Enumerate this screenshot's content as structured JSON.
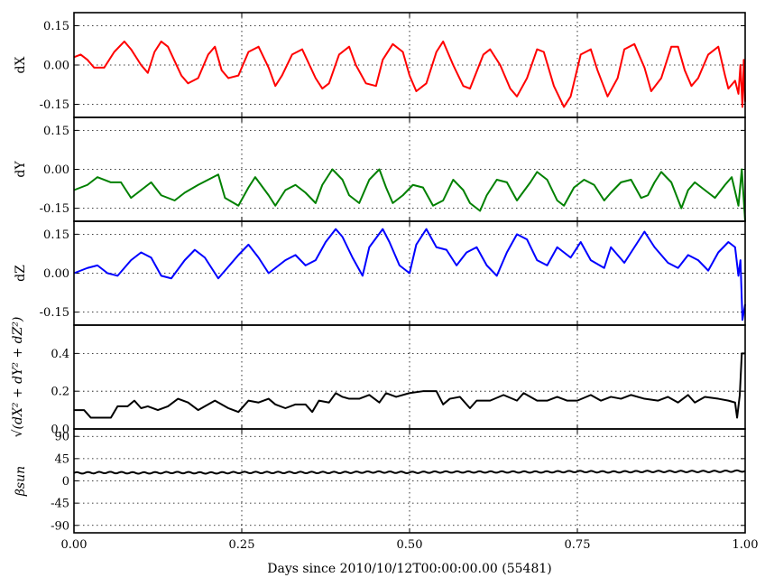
{
  "chart_data": {
    "type": "line",
    "xlabel": "Days since 2010/10/12T00:00:00.00 (55481)",
    "xlim": [
      0.0,
      1.0
    ],
    "xticks": [
      "0.00",
      "0.25",
      "0.50",
      "0.75",
      "1.00"
    ],
    "xtick_values": [
      0.0,
      0.25,
      0.5,
      0.75,
      1.0
    ],
    "grid": true,
    "panels": [
      {
        "ylabel": "dX",
        "ylim": [
          -0.2,
          0.2
        ],
        "yticks": [
          "0.15",
          "0.00",
          "-0.15"
        ],
        "ytick_values": [
          0.15,
          0.0,
          -0.15
        ],
        "color": "#ff0000",
        "series": {
          "x": [
            0.0,
            0.01,
            0.02,
            0.03,
            0.045,
            0.06,
            0.075,
            0.085,
            0.1,
            0.11,
            0.12,
            0.13,
            0.14,
            0.16,
            0.17,
            0.185,
            0.2,
            0.21,
            0.22,
            0.23,
            0.245,
            0.26,
            0.275,
            0.29,
            0.3,
            0.31,
            0.325,
            0.34,
            0.36,
            0.37,
            0.38,
            0.395,
            0.41,
            0.42,
            0.435,
            0.45,
            0.46,
            0.475,
            0.49,
            0.5,
            0.51,
            0.525,
            0.54,
            0.55,
            0.565,
            0.58,
            0.59,
            0.61,
            0.62,
            0.635,
            0.65,
            0.66,
            0.675,
            0.69,
            0.7,
            0.715,
            0.73,
            0.74,
            0.755,
            0.77,
            0.78,
            0.795,
            0.81,
            0.82,
            0.835,
            0.85,
            0.86,
            0.875,
            0.89,
            0.9,
            0.91,
            0.92,
            0.93,
            0.945,
            0.96,
            0.97,
            0.975,
            0.985,
            0.99,
            0.993,
            0.996,
            0.998,
            1.0
          ],
          "y": [
            0.03,
            0.04,
            0.02,
            -0.01,
            -0.01,
            0.05,
            0.09,
            0.06,
            0.0,
            -0.03,
            0.05,
            0.09,
            0.07,
            -0.04,
            -0.07,
            -0.05,
            0.04,
            0.07,
            -0.02,
            -0.05,
            -0.04,
            0.05,
            0.07,
            -0.01,
            -0.08,
            -0.04,
            0.04,
            0.06,
            -0.05,
            -0.09,
            -0.07,
            0.04,
            0.07,
            0.0,
            -0.07,
            -0.08,
            0.02,
            0.08,
            0.05,
            -0.04,
            -0.1,
            -0.07,
            0.05,
            0.09,
            0.0,
            -0.08,
            -0.09,
            0.04,
            0.06,
            0.0,
            -0.09,
            -0.12,
            -0.05,
            0.06,
            0.05,
            -0.08,
            -0.16,
            -0.12,
            0.04,
            0.06,
            -0.02,
            -0.12,
            -0.05,
            0.06,
            0.08,
            -0.01,
            -0.1,
            -0.05,
            0.07,
            0.07,
            -0.02,
            -0.08,
            -0.05,
            0.04,
            0.07,
            -0.04,
            -0.09,
            -0.06,
            -0.11,
            0.0,
            -0.16,
            0.02,
            -0.14
          ]
        }
      },
      {
        "ylabel": "dY",
        "ylim": [
          -0.2,
          0.2
        ],
        "yticks": [
          "0.15",
          "0.00",
          "-0.15"
        ],
        "ytick_values": [
          0.15,
          0.0,
          -0.15
        ],
        "color": "#008000",
        "series": {
          "x": [
            0.0,
            0.02,
            0.035,
            0.055,
            0.07,
            0.085,
            0.1,
            0.115,
            0.13,
            0.15,
            0.165,
            0.185,
            0.2,
            0.215,
            0.225,
            0.245,
            0.26,
            0.27,
            0.29,
            0.3,
            0.315,
            0.33,
            0.345,
            0.36,
            0.37,
            0.385,
            0.4,
            0.41,
            0.425,
            0.44,
            0.455,
            0.465,
            0.475,
            0.49,
            0.505,
            0.52,
            0.535,
            0.55,
            0.565,
            0.58,
            0.59,
            0.605,
            0.615,
            0.63,
            0.645,
            0.66,
            0.68,
            0.69,
            0.705,
            0.72,
            0.73,
            0.745,
            0.76,
            0.775,
            0.79,
            0.8,
            0.815,
            0.83,
            0.845,
            0.855,
            0.865,
            0.875,
            0.89,
            0.905,
            0.915,
            0.925,
            0.94,
            0.955,
            0.97,
            0.98,
            0.99,
            0.995,
            1.0
          ],
          "y": [
            -0.08,
            -0.06,
            -0.03,
            -0.05,
            -0.05,
            -0.11,
            -0.08,
            -0.05,
            -0.1,
            -0.12,
            -0.09,
            -0.06,
            -0.04,
            -0.02,
            -0.11,
            -0.14,
            -0.07,
            -0.03,
            -0.1,
            -0.14,
            -0.08,
            -0.06,
            -0.09,
            -0.13,
            -0.06,
            0.0,
            -0.04,
            -0.1,
            -0.13,
            -0.04,
            0.0,
            -0.07,
            -0.13,
            -0.1,
            -0.06,
            -0.07,
            -0.14,
            -0.12,
            -0.04,
            -0.08,
            -0.13,
            -0.16,
            -0.1,
            -0.04,
            -0.05,
            -0.12,
            -0.05,
            -0.01,
            -0.04,
            -0.12,
            -0.14,
            -0.07,
            -0.04,
            -0.06,
            -0.12,
            -0.09,
            -0.05,
            -0.04,
            -0.11,
            -0.1,
            -0.05,
            -0.01,
            -0.05,
            -0.15,
            -0.08,
            -0.05,
            -0.08,
            -0.11,
            -0.06,
            -0.03,
            -0.14,
            0.0,
            -0.2
          ]
        }
      },
      {
        "ylabel": "dZ",
        "ylim": [
          -0.2,
          0.2
        ],
        "yticks": [
          "0.15",
          "0.00",
          "-0.15"
        ],
        "ytick_values": [
          0.15,
          0.0,
          -0.15
        ],
        "color": "#0000ff",
        "series": {
          "x": [
            0.0,
            0.02,
            0.035,
            0.05,
            0.065,
            0.085,
            0.1,
            0.115,
            0.13,
            0.145,
            0.165,
            0.18,
            0.195,
            0.215,
            0.225,
            0.245,
            0.26,
            0.275,
            0.29,
            0.3,
            0.315,
            0.33,
            0.345,
            0.36,
            0.375,
            0.39,
            0.4,
            0.415,
            0.43,
            0.44,
            0.46,
            0.47,
            0.485,
            0.5,
            0.51,
            0.525,
            0.54,
            0.555,
            0.57,
            0.585,
            0.6,
            0.615,
            0.63,
            0.645,
            0.66,
            0.675,
            0.69,
            0.705,
            0.72,
            0.74,
            0.755,
            0.77,
            0.79,
            0.8,
            0.82,
            0.84,
            0.85,
            0.865,
            0.885,
            0.9,
            0.915,
            0.93,
            0.945,
            0.96,
            0.975,
            0.985,
            0.99,
            0.993,
            0.996,
            1.0
          ],
          "y": [
            0.0,
            0.02,
            0.03,
            0.0,
            -0.01,
            0.05,
            0.08,
            0.06,
            -0.01,
            -0.02,
            0.05,
            0.09,
            0.06,
            -0.02,
            0.01,
            0.07,
            0.11,
            0.06,
            0.0,
            0.02,
            0.05,
            0.07,
            0.03,
            0.05,
            0.12,
            0.17,
            0.14,
            0.06,
            -0.01,
            0.1,
            0.17,
            0.12,
            0.03,
            0.0,
            0.11,
            0.17,
            0.1,
            0.09,
            0.03,
            0.08,
            0.1,
            0.03,
            -0.01,
            0.08,
            0.15,
            0.13,
            0.05,
            0.03,
            0.1,
            0.06,
            0.12,
            0.05,
            0.02,
            0.1,
            0.04,
            0.12,
            0.16,
            0.1,
            0.04,
            0.02,
            0.07,
            0.05,
            0.01,
            0.08,
            0.12,
            0.1,
            -0.01,
            0.05,
            -0.18,
            -0.12
          ]
        }
      },
      {
        "ylabel": "sqrt(dX^2 + dY^2 + dZ^2)",
        "ylim": [
          0.0,
          0.55
        ],
        "yticks": [
          "0.4",
          "0.2",
          "0.0"
        ],
        "ytick_values": [
          0.4,
          0.2,
          0.0
        ],
        "color": "#000000",
        "series": {
          "x": [
            0.0,
            0.015,
            0.025,
            0.04,
            0.055,
            0.065,
            0.08,
            0.09,
            0.1,
            0.11,
            0.125,
            0.14,
            0.155,
            0.17,
            0.185,
            0.195,
            0.21,
            0.23,
            0.245,
            0.26,
            0.275,
            0.29,
            0.3,
            0.315,
            0.33,
            0.345,
            0.355,
            0.365,
            0.38,
            0.39,
            0.4,
            0.41,
            0.425,
            0.44,
            0.455,
            0.465,
            0.48,
            0.5,
            0.52,
            0.54,
            0.55,
            0.56,
            0.575,
            0.59,
            0.6,
            0.62,
            0.64,
            0.66,
            0.67,
            0.69,
            0.705,
            0.72,
            0.735,
            0.75,
            0.77,
            0.785,
            0.8,
            0.815,
            0.83,
            0.85,
            0.87,
            0.885,
            0.9,
            0.915,
            0.925,
            0.94,
            0.96,
            0.975,
            0.985,
            0.988,
            0.992,
            0.995,
            1.0
          ],
          "y": [
            0.1,
            0.1,
            0.06,
            0.06,
            0.06,
            0.12,
            0.12,
            0.15,
            0.11,
            0.12,
            0.1,
            0.12,
            0.16,
            0.14,
            0.1,
            0.12,
            0.15,
            0.11,
            0.09,
            0.15,
            0.14,
            0.16,
            0.13,
            0.11,
            0.13,
            0.13,
            0.09,
            0.15,
            0.14,
            0.19,
            0.17,
            0.16,
            0.16,
            0.18,
            0.14,
            0.19,
            0.17,
            0.19,
            0.2,
            0.2,
            0.13,
            0.16,
            0.17,
            0.11,
            0.15,
            0.15,
            0.18,
            0.15,
            0.19,
            0.15,
            0.15,
            0.17,
            0.15,
            0.15,
            0.18,
            0.15,
            0.17,
            0.16,
            0.18,
            0.16,
            0.15,
            0.17,
            0.14,
            0.18,
            0.14,
            0.17,
            0.16,
            0.15,
            0.14,
            0.06,
            0.18,
            0.4,
            0.4
          ]
        }
      },
      {
        "ylabel": "β_sun",
        "ylim": [
          -105,
          105
        ],
        "yticks": [
          "90",
          "45",
          "0",
          "-45",
          "-90"
        ],
        "ytick_values": [
          90,
          45,
          0,
          -45,
          -90
        ],
        "color": "#000000",
        "series": {
          "x": [
            0.0,
            0.05,
            0.1,
            0.15,
            0.2,
            0.25,
            0.3,
            0.35,
            0.4,
            0.45,
            0.5,
            0.55,
            0.6,
            0.65,
            0.7,
            0.75,
            0.8,
            0.85,
            0.9,
            0.95,
            1.0
          ],
          "y": [
            16,
            17,
            16,
            17,
            16,
            17,
            17,
            17,
            17,
            18,
            17,
            18,
            18,
            18,
            18,
            19,
            18,
            19,
            19,
            19,
            20
          ]
        },
        "wave_amplitude": 1.5,
        "wave_periods": 60
      }
    ]
  }
}
